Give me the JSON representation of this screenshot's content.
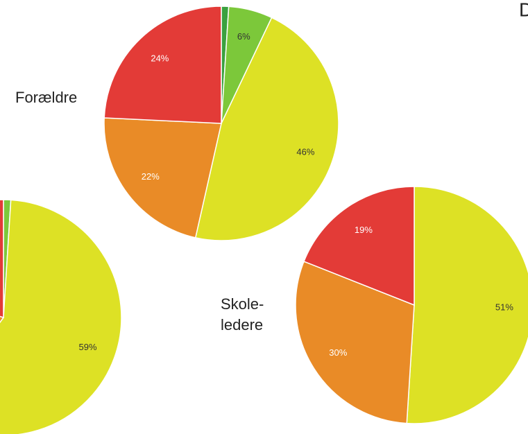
{
  "title": "D",
  "chart_data": [
    {
      "type": "pie",
      "label": [
        "Forældre"
      ],
      "values": [
        1,
        6,
        46,
        22,
        24
      ],
      "value_labels": [
        null,
        "6%",
        "46%",
        "22%",
        "24%"
      ],
      "colors": [
        "#3aa13f",
        "#7cc83a",
        "#dde125",
        "#e98b27",
        "#e33b37"
      ]
    },
    {
      "type": "pie",
      "label": [],
      "values": [
        1,
        59,
        20,
        20
      ],
      "value_labels": [
        null,
        "59%",
        null,
        null
      ],
      "colors": [
        "#7cc83a",
        "#dde125",
        "#e98b27",
        "#e33b37"
      ]
    },
    {
      "type": "pie",
      "label": [
        "Skole-",
        "ledere"
      ],
      "values": [
        51,
        30,
        19
      ],
      "value_labels": [
        "51%",
        "30%",
        "19%"
      ],
      "colors": [
        "#dde125",
        "#e98b27",
        "#e33b37"
      ]
    }
  ]
}
